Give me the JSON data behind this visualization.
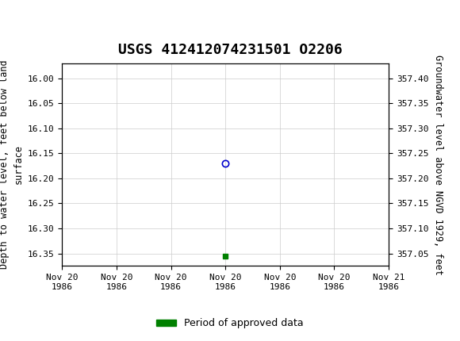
{
  "title": "USGS 412412074231501 O2206",
  "ylabel_left": "Depth to water level, feet below land\nsurface",
  "ylabel_right": "Groundwater level above NGVD 1929, feet",
  "ylim_left": [
    16.375,
    15.97
  ],
  "ylim_right": [
    357.025,
    357.43
  ],
  "yticks_left": [
    16.0,
    16.05,
    16.1,
    16.15,
    16.2,
    16.25,
    16.3,
    16.35
  ],
  "yticks_right": [
    357.4,
    357.35,
    357.3,
    357.25,
    357.2,
    357.15,
    357.1,
    357.05
  ],
  "xlim": [
    0,
    6
  ],
  "xtick_labels": [
    "Nov 20\n1986",
    "Nov 20\n1986",
    "Nov 20\n1986",
    "Nov 20\n1986",
    "Nov 20\n1986",
    "Nov 20\n1986",
    "Nov 21\n1986"
  ],
  "xtick_positions": [
    0,
    1,
    2,
    3,
    4,
    5,
    6
  ],
  "data_point_x": 3.0,
  "data_point_y": 16.17,
  "data_point_color": "#0000cc",
  "green_marker_x": 3.0,
  "green_marker_y": 16.355,
  "green_marker_color": "#008000",
  "legend_label": "Period of approved data",
  "legend_color": "#008000",
  "header_color": "#1a6b3c",
  "background_color": "#ffffff",
  "grid_color": "#cccccc",
  "title_fontsize": 13,
  "axis_label_fontsize": 8.5,
  "tick_fontsize": 8
}
